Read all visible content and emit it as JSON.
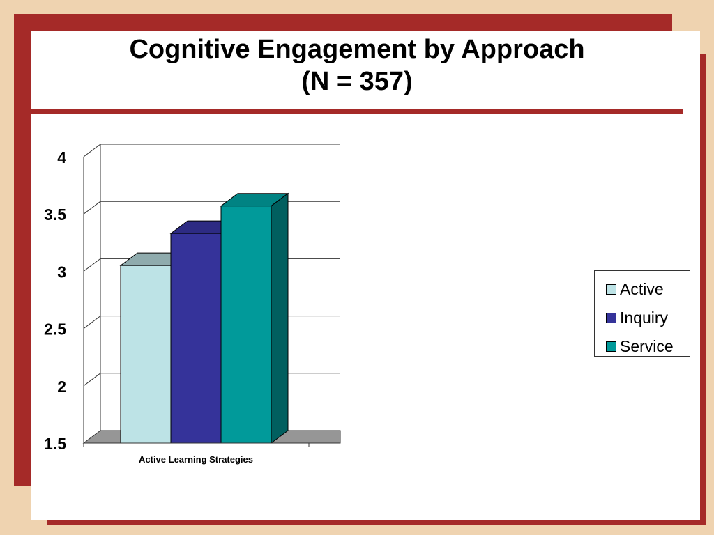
{
  "slide": {
    "title_line1": "Cognitive Engagement by Approach",
    "title_line2": "(N = 357)"
  },
  "colors": {
    "frame": "#a52a28",
    "background": "#efd3b0",
    "active": "#bde3e6",
    "inquiry": "#35339a",
    "service": "#019a9a"
  },
  "chart_data": {
    "type": "bar",
    "categories": [
      "Active Learning Strategies"
    ],
    "series": [
      {
        "name": "Active",
        "values": [
          3.05
        ],
        "color": "#bde3e6"
      },
      {
        "name": "Inquiry",
        "values": [
          3.33
        ],
        "color": "#35339a"
      },
      {
        "name": "Service",
        "values": [
          3.57
        ],
        "color": "#019a9a"
      }
    ],
    "title": "",
    "xlabel": "",
    "ylabel": "",
    "ylim": [
      1.5,
      4
    ],
    "yticks": [
      "1.5",
      "2",
      "2.5",
      "3",
      "3.5",
      "4"
    ],
    "grid": true,
    "three_d": true,
    "legend_position": "right"
  }
}
